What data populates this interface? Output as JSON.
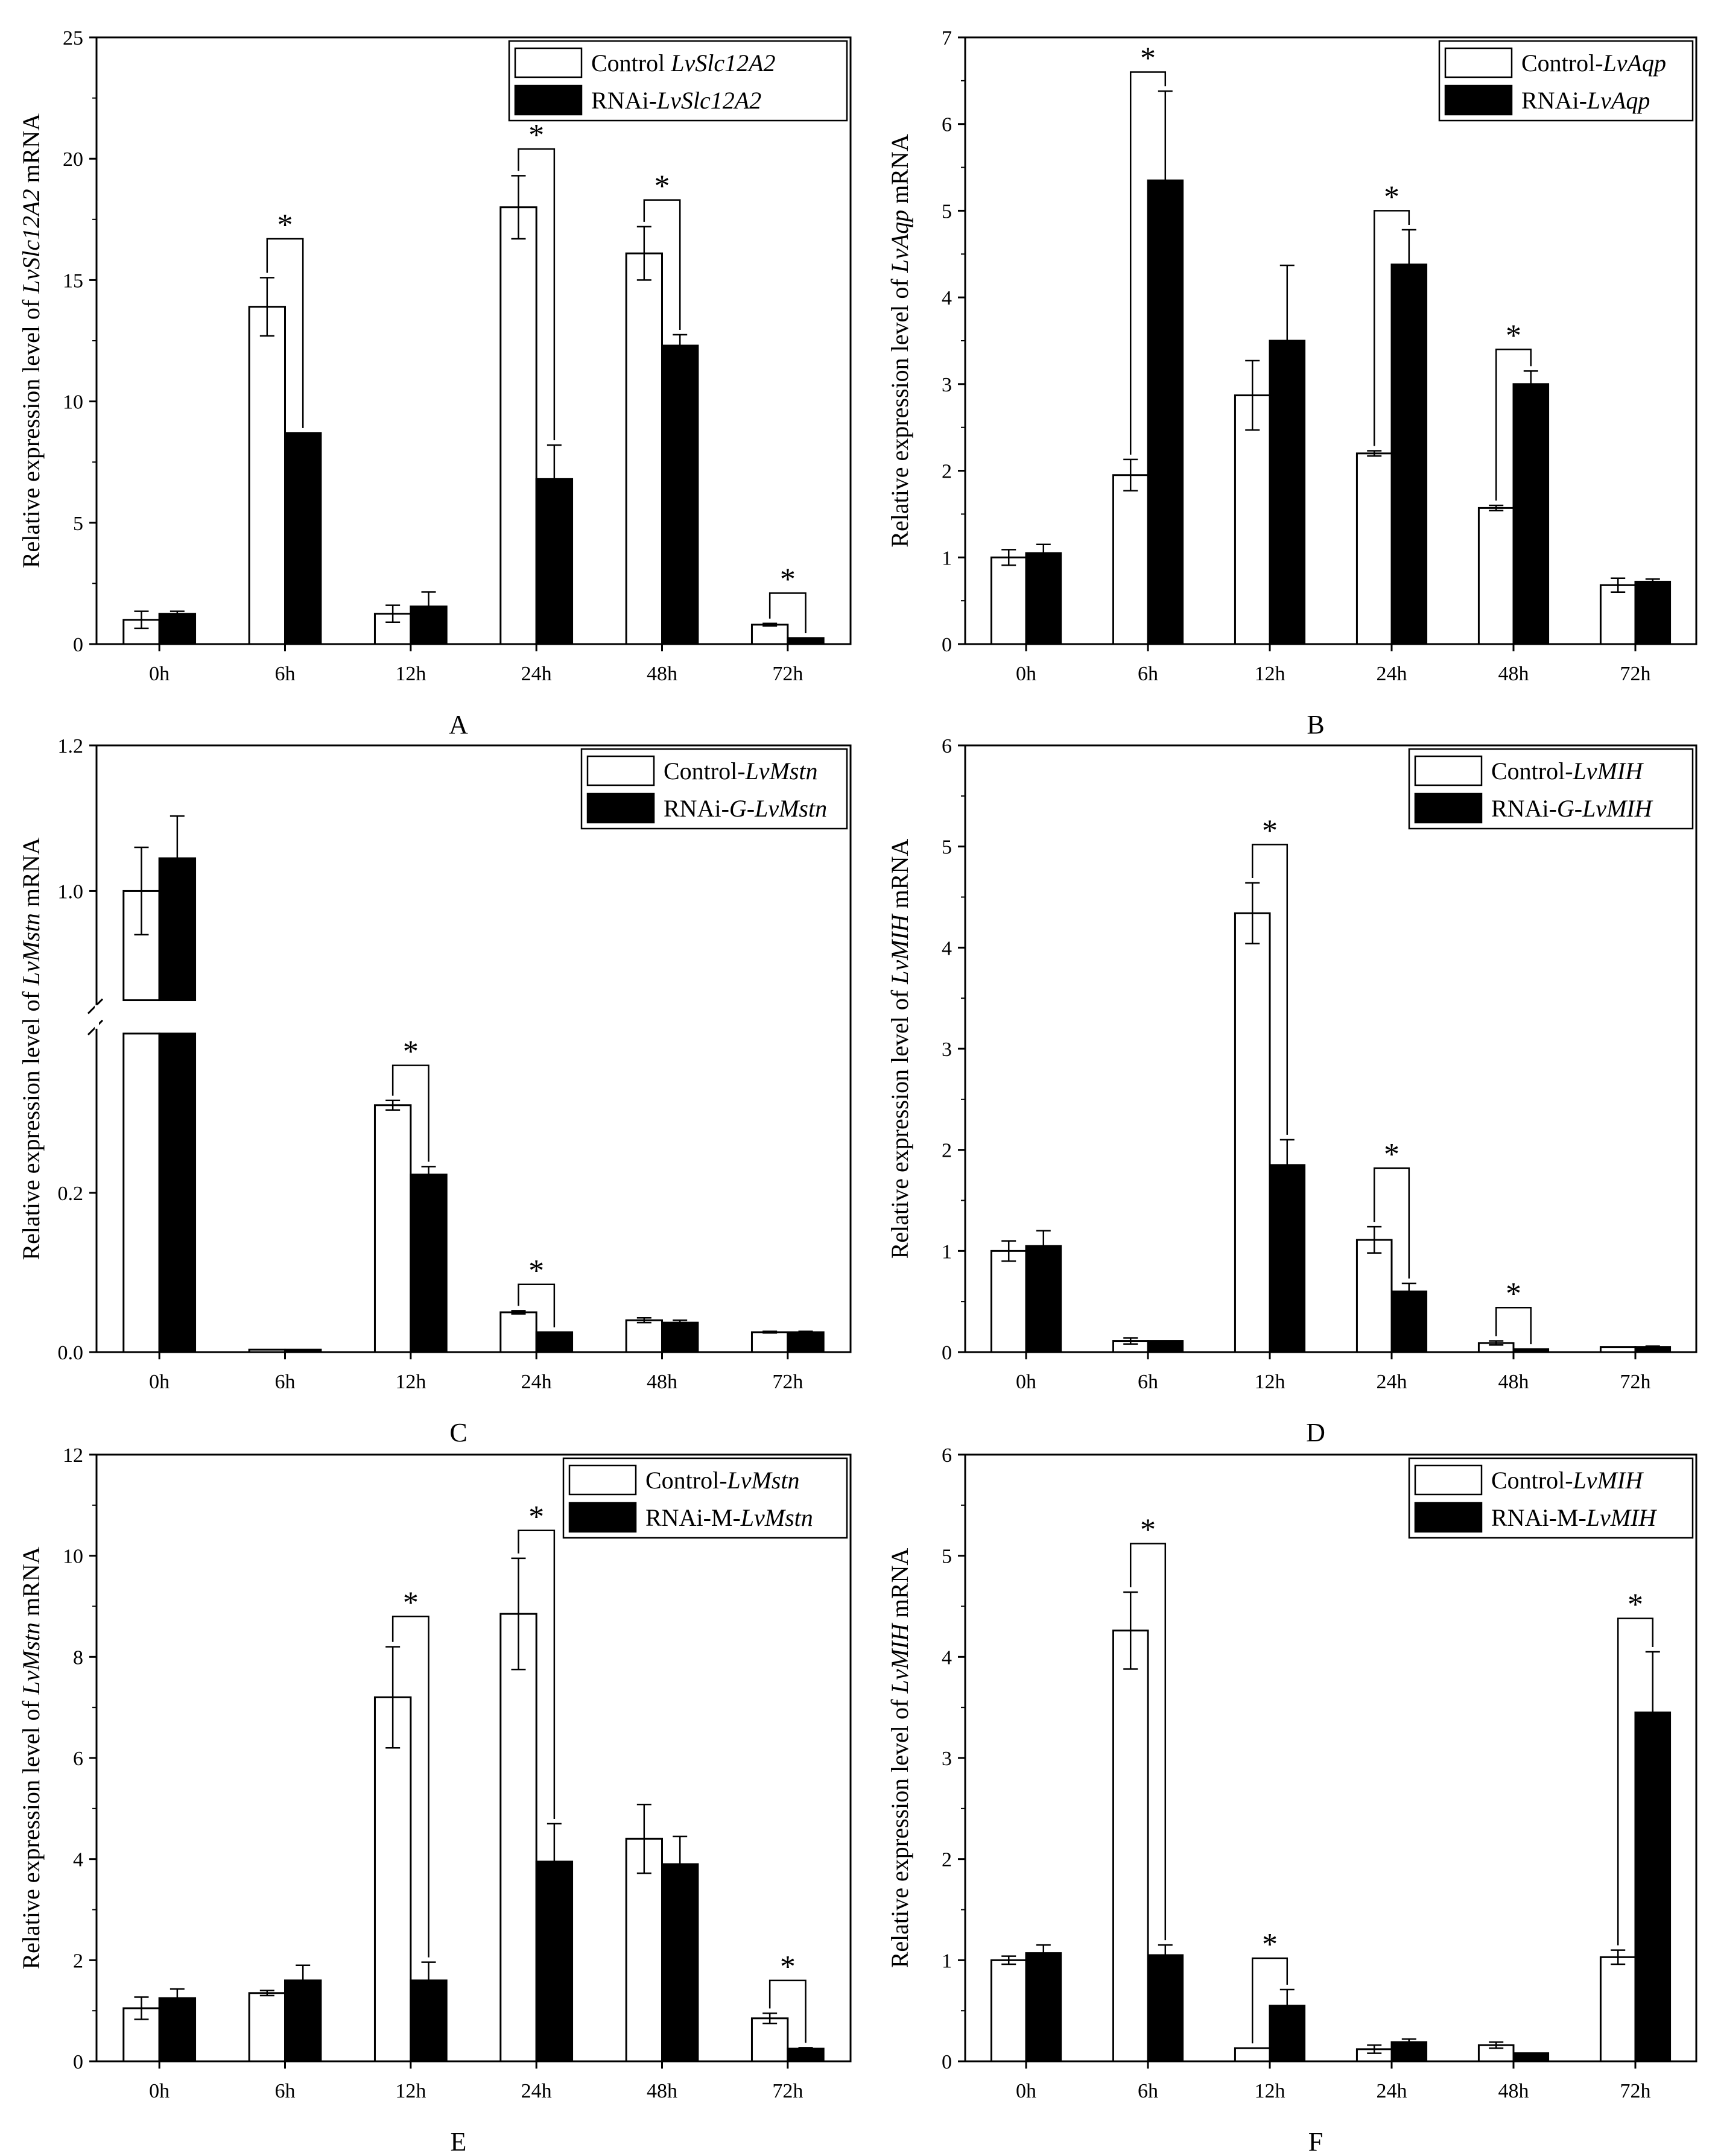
{
  "figure": {
    "categories": [
      "0h",
      "6h",
      "12h",
      "24h",
      "48h",
      "72h"
    ],
    "colors": {
      "control_fill": "#ffffff",
      "rnai_fill": "#000000",
      "stroke": "#000000"
    }
  },
  "chart_data": [
    {
      "type": "bar",
      "panel_label": "A",
      "ylabel_prefix": "Relative expression level of ",
      "ylabel_gene": "LvSlc12A2",
      "ylabel_suffix": " mRNA",
      "categories": [
        "0h",
        "6h",
        "12h",
        "24h",
        "48h",
        "72h"
      ],
      "ylim": [
        0,
        25
      ],
      "yticks": [
        0,
        5,
        10,
        15,
        20,
        25
      ],
      "series": [
        {
          "name": "Control LvSlc12A2",
          "legend_prefix": "Control ",
          "legend_gene": "LvSlc12A2",
          "values": [
            1.0,
            13.9,
            1.25,
            18.0,
            16.1,
            0.8
          ],
          "errors": [
            0.35,
            1.2,
            0.35,
            1.3,
            1.1,
            0.05
          ]
        },
        {
          "name": "RNAi-LvSlc12A2",
          "legend_prefix": "RNAi-",
          "legend_gene": "LvSlc12A2",
          "values": [
            1.25,
            8.7,
            1.55,
            6.8,
            12.3,
            0.25
          ],
          "errors": [
            0.1,
            0.0,
            0.6,
            1.4,
            0.45,
            0.0
          ]
        }
      ],
      "significance": [
        {
          "category": "6h",
          "label": "*",
          "y": 16.7
        },
        {
          "category": "24h",
          "label": "*",
          "y": 20.4
        },
        {
          "category": "48h",
          "label": "*",
          "y": 18.3
        },
        {
          "category": "72h",
          "label": "*",
          "y": 2.1
        }
      ]
    },
    {
      "type": "bar",
      "panel_label": "B",
      "ylabel_prefix": "Relative expression level of ",
      "ylabel_gene": "LvAqp",
      "ylabel_suffix": " mRNA",
      "categories": [
        "0h",
        "6h",
        "12h",
        "24h",
        "48h",
        "72h"
      ],
      "ylim": [
        0,
        7
      ],
      "yticks": [
        0,
        1,
        2,
        3,
        4,
        5,
        6,
        7
      ],
      "series": [
        {
          "name": "Control-LvAqp",
          "legend_prefix": "Control-",
          "legend_gene": "LvAqp",
          "values": [
            1.0,
            1.95,
            2.87,
            2.2,
            1.57,
            0.68
          ],
          "errors": [
            0.09,
            0.18,
            0.4,
            0.03,
            0.03,
            0.08
          ]
        },
        {
          "name": "RNAi-LvAqp",
          "legend_prefix": "RNAi-",
          "legend_gene": "LvAqp",
          "values": [
            1.05,
            5.35,
            3.5,
            4.38,
            3.0,
            0.72
          ],
          "errors": [
            0.1,
            1.03,
            0.87,
            0.4,
            0.15,
            0.03
          ]
        }
      ],
      "significance": [
        {
          "category": "6h",
          "label": "*",
          "y": 6.6
        },
        {
          "category": "24h",
          "label": "*",
          "y": 5.0
        },
        {
          "category": "48h",
          "label": "*",
          "y": 3.4
        }
      ]
    },
    {
      "type": "bar",
      "panel_label": "C",
      "ylabel_prefix": "Relative expression level of ",
      "ylabel_gene": "LvMstn",
      "ylabel_suffix": " mRNA",
      "categories": [
        "0h",
        "6h",
        "12h",
        "24h",
        "48h",
        "72h"
      ],
      "broken_axis": {
        "lower": [
          0,
          0.4
        ],
        "upper": [
          0.85,
          1.2
        ]
      },
      "yticks": [
        0.0,
        0.2,
        1.0,
        1.2
      ],
      "series": [
        {
          "name": "Control-LvMstn",
          "legend_prefix": "Control-",
          "legend_gene": "LvMstn",
          "values": [
            1.0,
            0.003,
            0.31,
            0.05,
            0.04,
            0.025
          ],
          "errors": [
            0.06,
            0.0,
            0.006,
            0.002,
            0.003,
            0.001
          ]
        },
        {
          "name": "RNAi-G-LvMstn",
          "legend_prefix": "RNAi-",
          "legend_gene": "G-LvMstn",
          "values": [
            1.045,
            0.003,
            0.223,
            0.025,
            0.037,
            0.025
          ],
          "errors": [
            0.058,
            0.0,
            0.01,
            0.0,
            0.003,
            0.001
          ]
        }
      ],
      "significance": [
        {
          "category": "12h",
          "label": "*",
          "y": 0.36
        },
        {
          "category": "24h",
          "label": "*",
          "y": 0.085
        }
      ]
    },
    {
      "type": "bar",
      "panel_label": "D",
      "ylabel_prefix": "Relative expression level of ",
      "ylabel_gene": "LvMIH",
      "ylabel_suffix": " mRNA",
      "categories": [
        "0h",
        "6h",
        "12h",
        "24h",
        "48h",
        "72h"
      ],
      "ylim": [
        0,
        6
      ],
      "yticks": [
        0,
        1,
        2,
        3,
        4,
        5,
        6
      ],
      "series": [
        {
          "name": "Control-LvMIH",
          "legend_prefix": "Control-",
          "legend_gene": "LvMIH",
          "values": [
            1.0,
            0.11,
            4.34,
            1.11,
            0.09,
            0.05
          ],
          "errors": [
            0.1,
            0.03,
            0.3,
            0.13,
            0.02,
            0.0
          ]
        },
        {
          "name": "RNAi-G-LvMIH",
          "legend_prefix": "RNAi-",
          "legend_gene": "G-LvMIH",
          "values": [
            1.05,
            0.11,
            1.85,
            0.6,
            0.03,
            0.05
          ],
          "errors": [
            0.15,
            0.0,
            0.25,
            0.08,
            0.0,
            0.01
          ]
        }
      ],
      "significance": [
        {
          "category": "12h",
          "label": "*",
          "y": 5.02
        },
        {
          "category": "24h",
          "label": "*",
          "y": 1.82
        },
        {
          "category": "48h",
          "label": "*",
          "y": 0.44
        }
      ]
    },
    {
      "type": "bar",
      "panel_label": "E",
      "ylabel_prefix": "Relative expression level of ",
      "ylabel_gene": "LvMstn",
      "ylabel_suffix": " mRNA",
      "categories": [
        "0h",
        "6h",
        "12h",
        "24h",
        "48h",
        "72h"
      ],
      "ylim": [
        0,
        12
      ],
      "yticks": [
        0,
        2,
        4,
        6,
        8,
        10,
        12
      ],
      "series": [
        {
          "name": "Control-LvMstn",
          "legend_prefix": "Control-",
          "legend_gene": "LvMstn",
          "values": [
            1.05,
            1.35,
            7.2,
            8.85,
            4.4,
            0.85
          ],
          "errors": [
            0.22,
            0.05,
            1.0,
            1.1,
            0.68,
            0.1
          ]
        },
        {
          "name": "RNAi-M-LvMstn",
          "legend_prefix": "RNAi-M-",
          "legend_gene": "LvMstn",
          "values": [
            1.25,
            1.6,
            1.6,
            3.95,
            3.9,
            0.25
          ],
          "errors": [
            0.18,
            0.3,
            0.36,
            0.75,
            0.55,
            0.02
          ]
        }
      ],
      "significance": [
        {
          "category": "12h",
          "label": "*",
          "y": 8.8
        },
        {
          "category": "24h",
          "label": "*",
          "y": 10.5
        },
        {
          "category": "72h",
          "label": "*",
          "y": 1.6
        }
      ]
    },
    {
      "type": "bar",
      "panel_label": "F",
      "ylabel_prefix": "Relative expression level of ",
      "ylabel_gene": "LvMIH",
      "ylabel_suffix": " mRNA",
      "categories": [
        "0h",
        "6h",
        "12h",
        "24h",
        "48h",
        "72h"
      ],
      "ylim": [
        0,
        6
      ],
      "yticks": [
        0,
        1,
        2,
        3,
        4,
        5,
        6
      ],
      "series": [
        {
          "name": "Control-LvMIH",
          "legend_prefix": "Control-",
          "legend_gene": "LvMIH",
          "values": [
            1.0,
            4.26,
            0.13,
            0.12,
            0.16,
            1.03
          ],
          "errors": [
            0.04,
            0.38,
            0.0,
            0.04,
            0.03,
            0.07
          ]
        },
        {
          "name": "RNAi-M-LvMIH",
          "legend_prefix": "RNAi-M-",
          "legend_gene": "LvMIH",
          "values": [
            1.07,
            1.05,
            0.55,
            0.19,
            0.08,
            3.45
          ],
          "errors": [
            0.08,
            0.1,
            0.16,
            0.03,
            0.0,
            0.6
          ]
        }
      ],
      "significance": [
        {
          "category": "6h",
          "label": "*",
          "y": 5.12
        },
        {
          "category": "12h",
          "label": "*",
          "y": 1.02
        },
        {
          "category": "72h",
          "label": "*",
          "y": 4.38
        }
      ]
    }
  ]
}
